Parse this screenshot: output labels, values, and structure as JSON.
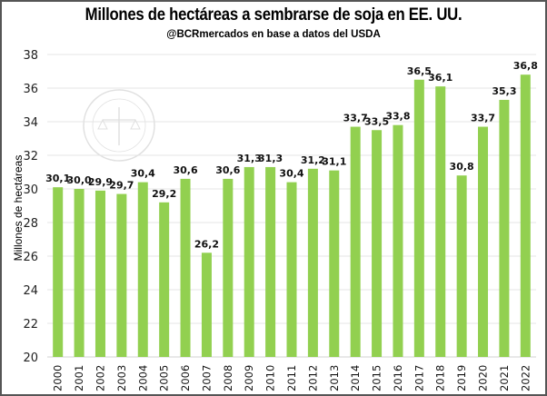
{
  "chart_data": {
    "type": "bar",
    "title": "Millones de hectáreas a sembrarse de soja en EE. UU.",
    "subtitle": "@BCRmercados en base a datos del USDA",
    "xlabel": "",
    "ylabel": "Millones de hectáreas",
    "ylim": [
      20,
      38
    ],
    "yticks": [
      20,
      22,
      24,
      26,
      28,
      30,
      32,
      34,
      36,
      38
    ],
    "grid": true,
    "categories": [
      "2000",
      "2001",
      "2002",
      "2003",
      "2004",
      "2005",
      "2006",
      "2007",
      "2008",
      "2009",
      "2010",
      "2011",
      "2012",
      "2013",
      "2014",
      "2015",
      "2016",
      "2017",
      "2018",
      "2019",
      "2020",
      "2021",
      "2022"
    ],
    "values": [
      30.1,
      30.0,
      29.9,
      29.7,
      30.4,
      29.2,
      30.6,
      26.2,
      30.6,
      31.3,
      31.3,
      30.4,
      31.2,
      31.1,
      33.7,
      33.5,
      33.8,
      36.5,
      36.1,
      30.8,
      33.7,
      35.3,
      36.8
    ],
    "labels": [
      "30,1",
      "30,0",
      "29,9",
      "29,7",
      "30,4",
      "29,2",
      "30,6",
      "26,2",
      "30,6",
      "31,3",
      "31,3",
      "30,4",
      "31,2",
      "31,1",
      "33,7",
      "33,5",
      "33,8",
      "36,5",
      "36,1",
      "30,8",
      "33,7",
      "35,3",
      "36,8"
    ],
    "bar_color": "#92d050"
  },
  "watermark": {
    "text": "BOLSA DE COMERCIO DE ROSARIO"
  }
}
